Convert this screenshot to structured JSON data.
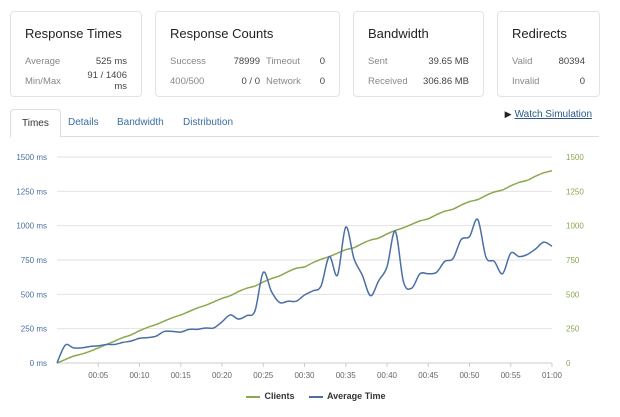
{
  "cards": {
    "response_times": {
      "title": "Response Times",
      "rows": [
        {
          "label": "Average",
          "value": "525 ms"
        },
        {
          "label": "Min/Max",
          "value": "91 / 1406 ms"
        }
      ]
    },
    "response_counts": {
      "title": "Response Counts",
      "rows": [
        {
          "label": "Success",
          "value": "78999",
          "label2": "Timeout",
          "value2": "0"
        },
        {
          "label": "400/500",
          "value": "0 / 0",
          "label2": "Network",
          "value2": "0"
        }
      ]
    },
    "bandwidth": {
      "title": "Bandwidth",
      "rows": [
        {
          "label": "Sent",
          "value": "39.65 MB"
        },
        {
          "label": "Received",
          "value": "306.86 MB"
        }
      ]
    },
    "redirects": {
      "title": "Redirects",
      "rows": [
        {
          "label": "Valid",
          "value": "80394"
        },
        {
          "label": "Invalid",
          "value": "0"
        }
      ]
    }
  },
  "tabs": [
    {
      "label": "Times",
      "active": true
    },
    {
      "label": "Details"
    },
    {
      "label": "Bandwidth"
    },
    {
      "label": "Distribution"
    }
  ],
  "watch_simulation": {
    "label": "Watch Simulation",
    "icon": "play-icon"
  },
  "colors": {
    "clients": "#8aa84f",
    "average_time": "#4a6fa5",
    "left_axis": "#4a6fa5",
    "right_axis": "#8aa84f"
  },
  "chart_data": {
    "type": "line",
    "x_ticks": [
      "00:05",
      "00:10",
      "00:15",
      "00:20",
      "00:25",
      "00:30",
      "00:35",
      "00:40",
      "00:45",
      "00:50",
      "00:55",
      "01:00"
    ],
    "x_range_seconds": [
      0,
      60
    ],
    "y_left": {
      "ticks": [
        "0 ms",
        "250 ms",
        "500 ms",
        "750 ms",
        "1000 ms",
        "1250 ms",
        "1500 ms"
      ],
      "range": [
        0,
        1500
      ]
    },
    "y_right": {
      "ticks": [
        "0",
        "250",
        "500",
        "750",
        "1000",
        "1250",
        "1500"
      ],
      "range": [
        0,
        1500
      ]
    },
    "grid": true,
    "legend_placement": "bottom",
    "series": [
      {
        "name": "Clients",
        "axis": "right",
        "values": [
          0,
          25,
          50,
          65,
          85,
          110,
          135,
          160,
          185,
          205,
          235,
          260,
          280,
          305,
          330,
          350,
          375,
          400,
          420,
          445,
          470,
          490,
          520,
          545,
          560,
          590,
          615,
          635,
          665,
          690,
          700,
          730,
          755,
          775,
          800,
          825,
          840,
          870,
          895,
          910,
          940,
          965,
          985,
          1010,
          1035,
          1050,
          1080,
          1105,
          1120,
          1150,
          1175,
          1190,
          1220,
          1245,
          1260,
          1290,
          1315,
          1330,
          1360,
          1385,
          1400
        ]
      },
      {
        "name": "Average Time",
        "axis": "left",
        "values": [
          0,
          130,
          110,
          110,
          120,
          125,
          135,
          135,
          150,
          160,
          180,
          185,
          195,
          230,
          230,
          225,
          245,
          245,
          255,
          255,
          300,
          350,
          320,
          345,
          380,
          660,
          520,
          440,
          450,
          450,
          495,
          525,
          560,
          775,
          640,
          990,
          760,
          640,
          490,
          600,
          700,
          960,
          590,
          545,
          650,
          650,
          660,
          740,
          760,
          900,
          920,
          1045,
          770,
          740,
          650,
          800,
          775,
          790,
          830,
          880,
          850
        ]
      }
    ]
  }
}
